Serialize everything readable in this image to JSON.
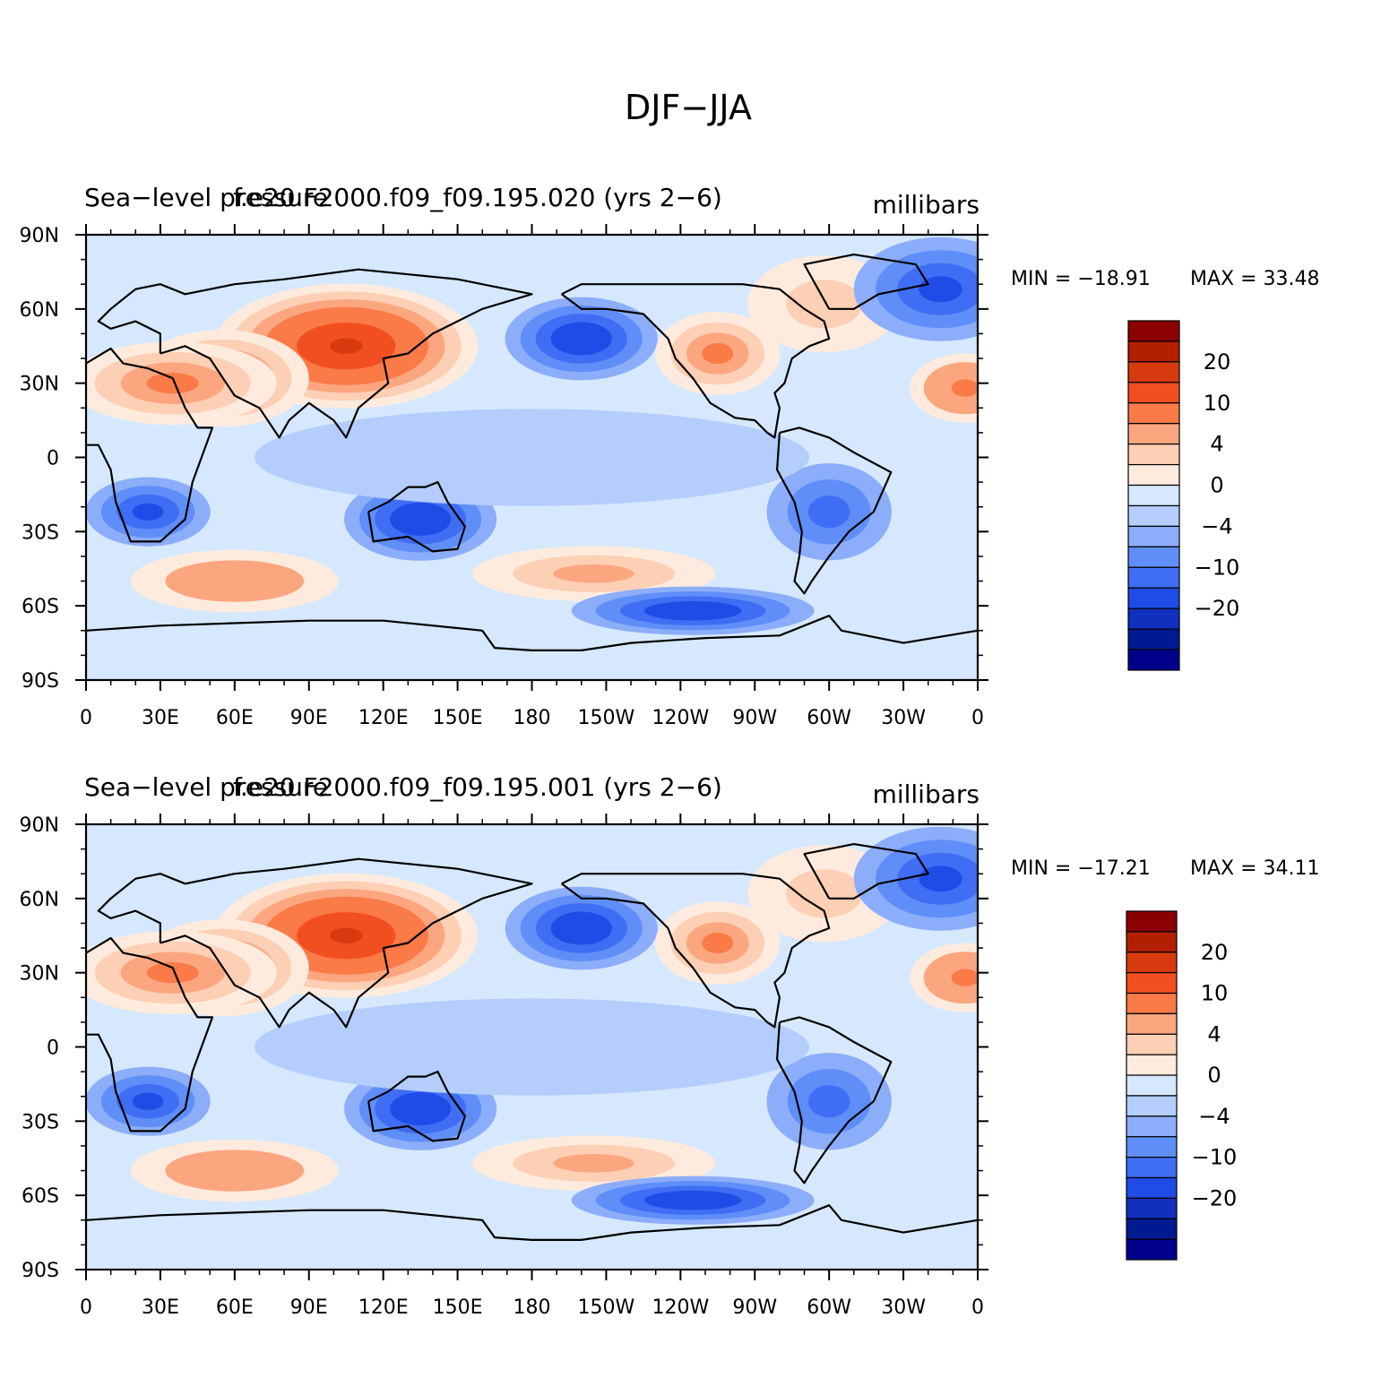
{
  "title": "DJF−JJA",
  "panels": [
    {
      "field": "Sea−level pressure",
      "case": "f.e20.F2000.f09_f09.195.020 (yrs 2−6)",
      "units": "millibars",
      "min_label": "MIN = −18.91",
      "max_label": "MAX =   33.48",
      "min": -18.91,
      "max": 33.48
    },
    {
      "field": "Sea−level pressure",
      "case": "f.e20.F2000.f09_f09.195.001 (yrs 2−6)",
      "units": "millibars",
      "min_label": "MIN = −17.21",
      "max_label": "MAX =   34.11",
      "min": -17.21,
      "max": 34.11
    }
  ],
  "lat_ticks": [
    "90N",
    "60N",
    "30N",
    "0",
    "30S",
    "60S",
    "90S"
  ],
  "lon_ticks": [
    "0",
    "30E",
    "60E",
    "90E",
    "120E",
    "150E",
    "180",
    "150W",
    "120W",
    "90W",
    "60W",
    "30W",
    "0"
  ],
  "colorbar": {
    "colors": [
      "#8b0000",
      "#b22000",
      "#d83a10",
      "#f24f20",
      "#fa7a48",
      "#fca680",
      "#fdcfb4",
      "#feebdd",
      "#d6e8fd",
      "#b4cdfc",
      "#8cadfa",
      "#5f8ef8",
      "#3f6ef5",
      "#1f4ce6",
      "#1030bd",
      "#001a92",
      "#00008b"
    ],
    "labels": [
      "20",
      "10",
      "4",
      "0",
      "−4",
      "−10",
      "−20"
    ]
  },
  "features": [
    {
      "lon": 105,
      "lat": 45,
      "rx": 38,
      "ry": 18,
      "value": 22
    },
    {
      "lon": 55,
      "lat": 32,
      "rx": 25,
      "ry": 14,
      "value": 14
    },
    {
      "lon": 35,
      "lat": 30,
      "rx": 30,
      "ry": 12,
      "value": 10
    },
    {
      "lon": 200,
      "lat": 48,
      "rx": 22,
      "ry": 12,
      "value": -15
    },
    {
      "lon": 298,
      "lat": 62,
      "rx": 22,
      "ry": 14,
      "value": 5
    },
    {
      "lon": 255,
      "lat": 42,
      "rx": 18,
      "ry": 12,
      "value": 10
    },
    {
      "lon": 345,
      "lat": 68,
      "rx": 25,
      "ry": 15,
      "value": -12
    },
    {
      "lon": 355,
      "lat": 28,
      "rx": 16,
      "ry": 10,
      "value": 12
    },
    {
      "lon": 25,
      "lat": -22,
      "rx": 18,
      "ry": 10,
      "value": -12
    },
    {
      "lon": 135,
      "lat": -25,
      "rx": 22,
      "ry": 12,
      "value": -13
    },
    {
      "lon": 60,
      "lat": -50,
      "rx": 30,
      "ry": 9,
      "value": 9
    },
    {
      "lon": 205,
      "lat": -47,
      "rx": 35,
      "ry": 8,
      "value": 8
    },
    {
      "lon": 245,
      "lat": -62,
      "rx": 35,
      "ry": 7,
      "value": -14
    },
    {
      "lon": 300,
      "lat": -22,
      "rx": 18,
      "ry": 14,
      "value": -7
    },
    {
      "lon": 180,
      "lat": 0,
      "rx": 80,
      "ry": 14,
      "value": -2
    }
  ]
}
